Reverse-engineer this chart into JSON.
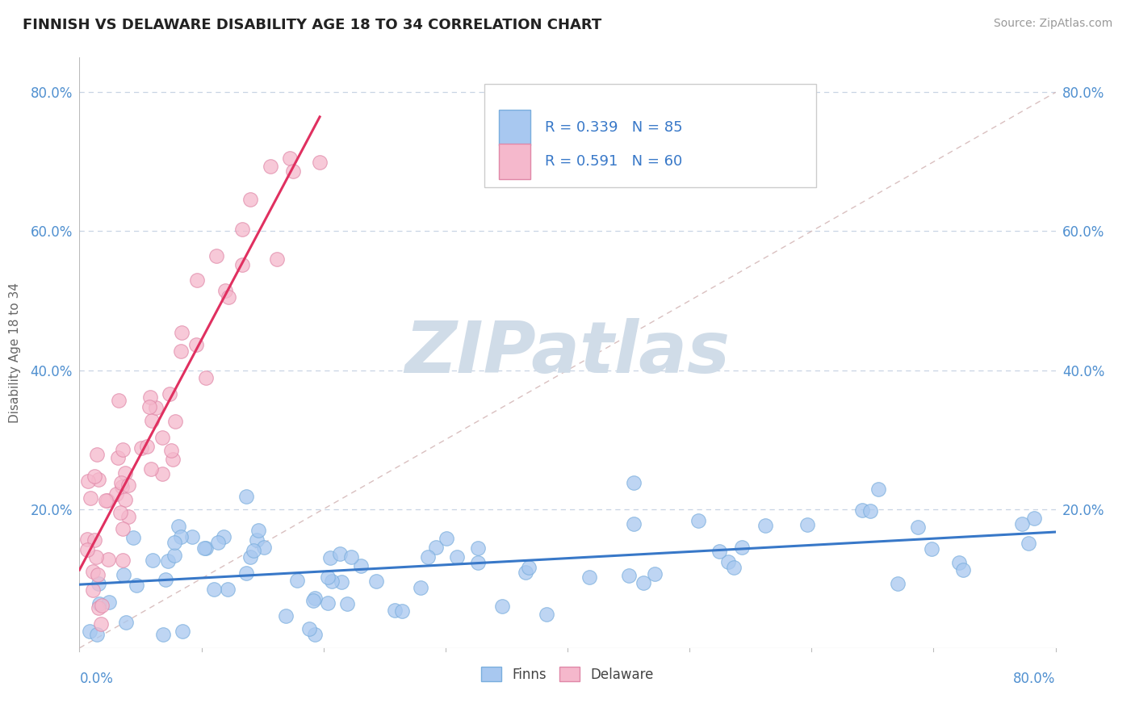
{
  "title": "FINNISH VS DELAWARE DISABILITY AGE 18 TO 34 CORRELATION CHART",
  "source": "Source: ZipAtlas.com",
  "ylabel": "Disability Age 18 to 34",
  "finns_R": 0.339,
  "finns_N": 85,
  "delaware_R": 0.591,
  "delaware_N": 60,
  "finns_color": "#a8c8f0",
  "finns_edge_color": "#7aaedd",
  "delaware_color": "#f5b8cc",
  "delaware_edge_color": "#e088a8",
  "finns_trend_color": "#3878c8",
  "delaware_trend_color": "#e03060",
  "diagonal_color": "#d0b0b0",
  "watermark_color": "#d0dce8",
  "background_color": "#ffffff",
  "grid_color": "#c8d4e4",
  "xlim": [
    0.0,
    0.8
  ],
  "ylim": [
    0.0,
    0.85
  ],
  "ytick_values": [
    0.2,
    0.4,
    0.6,
    0.8
  ],
  "ytick_labels": [
    "20.0%",
    "40.0%",
    "60.0%",
    "80.0%"
  ]
}
